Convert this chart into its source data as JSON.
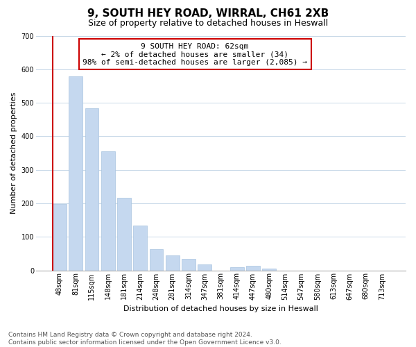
{
  "title": "9, SOUTH HEY ROAD, WIRRAL, CH61 2XB",
  "subtitle": "Size of property relative to detached houses in Heswall",
  "xlabel": "Distribution of detached houses by size in Heswall",
  "ylabel": "Number of detached properties",
  "footer_line1": "Contains HM Land Registry data © Crown copyright and database right 2024.",
  "footer_line2": "Contains public sector information licensed under the Open Government Licence v3.0.",
  "bar_labels": [
    "48sqm",
    "81sqm",
    "115sqm",
    "148sqm",
    "181sqm",
    "214sqm",
    "248sqm",
    "281sqm",
    "314sqm",
    "347sqm",
    "381sqm",
    "414sqm",
    "447sqm",
    "480sqm",
    "514sqm",
    "547sqm",
    "580sqm",
    "613sqm",
    "647sqm",
    "680sqm",
    "713sqm"
  ],
  "bar_values": [
    197,
    578,
    484,
    355,
    216,
    133,
    63,
    45,
    35,
    18,
    0,
    10,
    13,
    5,
    0,
    0,
    0,
    0,
    0,
    0,
    0
  ],
  "bar_color": "#c5d8ef",
  "bar_edge_color": "#a8c4e0",
  "highlight_left_edge_color": "#cc0000",
  "annotation_text": "9 SOUTH HEY ROAD: 62sqm\n← 2% of detached houses are smaller (34)\n98% of semi-detached houses are larger (2,085) →",
  "annotation_box_edge_color": "#cc0000",
  "ylim": [
    0,
    700
  ],
  "yticks": [
    0,
    100,
    200,
    300,
    400,
    500,
    600,
    700
  ],
  "grid_color": "#c8d8e8",
  "background_color": "#ffffff",
  "title_fontsize": 11,
  "subtitle_fontsize": 9,
  "axis_label_fontsize": 8,
  "tick_fontsize": 7,
  "annotation_fontsize": 8,
  "footer_fontsize": 6.5
}
